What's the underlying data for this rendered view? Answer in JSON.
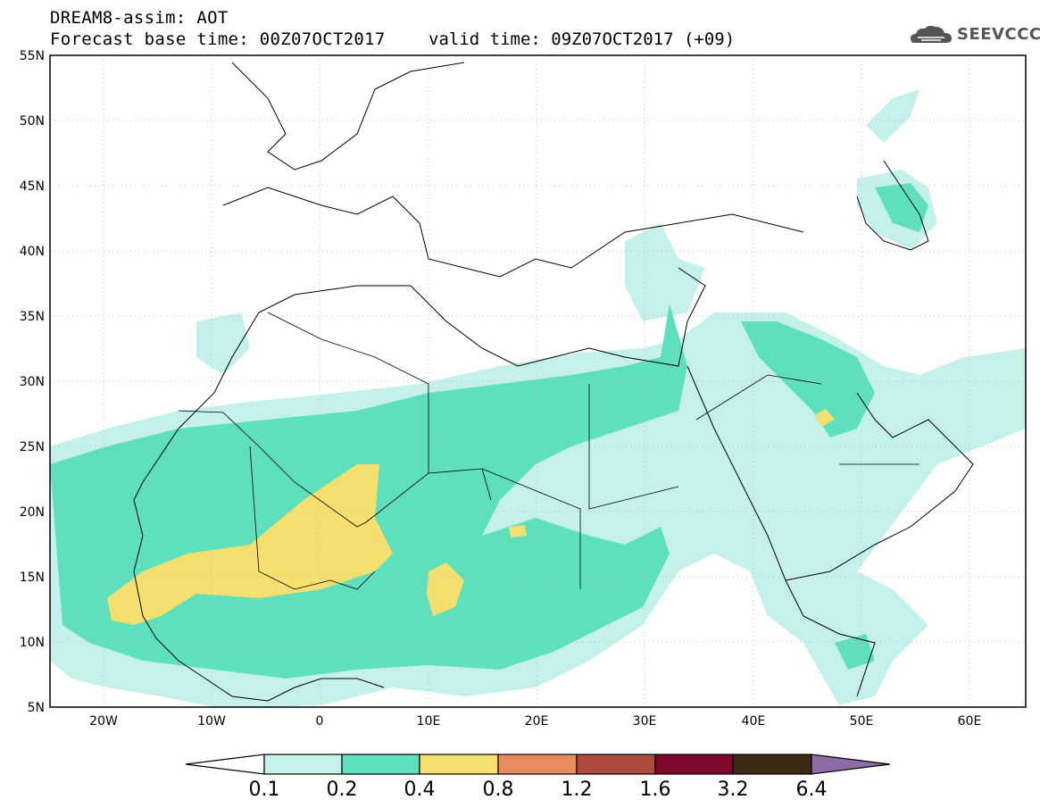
{
  "header": {
    "line1": "DREAM8-assim: AOT",
    "line2": "Forecast base time: 00Z07OCT2017",
    "valid": "valid time: 09Z07OCT2017 (+09)"
  },
  "logo": {
    "text": "SEEVCCC",
    "icon": "cloud-logo-icon",
    "color": "#555555"
  },
  "map": {
    "lat_labels": [
      "55N",
      "50N",
      "45N",
      "40N",
      "35N",
      "30N",
      "25N",
      "20N",
      "15N",
      "10N",
      "5N"
    ],
    "lon_labels": [
      "20W",
      "10W",
      "0",
      "10E",
      "20E",
      "30E",
      "40E",
      "50E",
      "60E"
    ],
    "lat_range": [
      5,
      55
    ],
    "lon_range": [
      -25,
      65
    ],
    "grid": "dotted"
  },
  "legend": {
    "labels": [
      "0.1",
      "0.2",
      "0.4",
      "0.8",
      "1.2",
      "1.6",
      "3.2",
      "6.4"
    ],
    "colors": [
      "#ffffff",
      "#c4f1ea",
      "#5ee0bd",
      "#f5e06f",
      "#e88c5e",
      "#ad4c3c",
      "#7d0a2c",
      "#3d2a14",
      "#8f6ba8"
    ]
  }
}
